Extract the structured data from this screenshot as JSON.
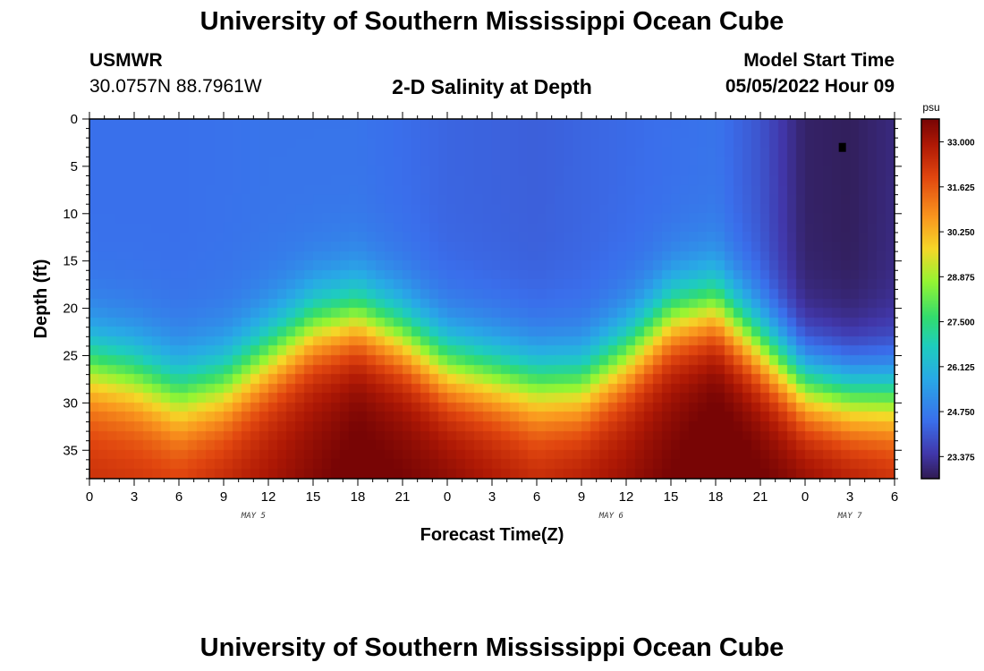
{
  "header": {
    "title": "University of Southern Mississippi Ocean Cube",
    "station_name": "USMWR",
    "station_coords": "30.0757N  88.7961W",
    "chart_title": "2-D Salinity at Depth",
    "model_label": "Model Start Time",
    "model_date": "05/05/2022 Hour 09"
  },
  "footer": {
    "title": "University of Southern Mississippi Ocean Cube"
  },
  "chart_data": {
    "type": "heatmap",
    "title": "2-D Salinity at Depth",
    "xlabel": "Forecast Time(Z)",
    "ylabel": "Depth (ft)",
    "x_ticks": [
      "0",
      "3",
      "6",
      "9",
      "12",
      "15",
      "18",
      "21",
      "0",
      "3",
      "6",
      "9",
      "12",
      "15",
      "18",
      "21",
      "0",
      "3",
      "6"
    ],
    "x_range_hours": [
      0,
      54
    ],
    "y_ticks": [
      "0",
      "5",
      "10",
      "15",
      "20",
      "25",
      "30",
      "35"
    ],
    "ylim": [
      0,
      38
    ],
    "date_labels": [
      {
        "label": "MAY 5",
        "hour": 11
      },
      {
        "label": "MAY 6",
        "hour": 35
      },
      {
        "label": "MAY 7",
        "hour": 51
      }
    ],
    "colorbar": {
      "unit": "psu",
      "range": [
        22.7,
        33.7
      ],
      "ticks": [
        "33.000",
        "31.625",
        "30.250",
        "28.875",
        "27.500",
        "26.125",
        "24.750",
        "23.375"
      ]
    },
    "marker": {
      "hour": 50.5,
      "depth": 3
    },
    "series": [
      {
        "name": "halocline_depth_ft",
        "hours": [
          0,
          3,
          6,
          9,
          12,
          15,
          18,
          21,
          24,
          27,
          30,
          33,
          36,
          39,
          42,
          45,
          48,
          51,
          54
        ],
        "values": [
          26,
          27,
          29,
          28,
          25,
          22,
          21,
          23,
          26,
          27,
          28,
          28,
          25,
          21,
          20,
          24,
          28,
          29,
          29
        ]
      },
      {
        "name": "bottom_salinity_psu",
        "hours": [
          0,
          6,
          12,
          18,
          24,
          30,
          36,
          42,
          48,
          54
        ],
        "values": [
          32.0,
          31.8,
          32.6,
          33.5,
          33.0,
          32.2,
          32.8,
          33.7,
          33.0,
          32.2
        ]
      },
      {
        "name": "surface_salinity_psu",
        "hours": [
          0,
          6,
          12,
          18,
          24,
          30,
          36,
          42,
          45,
          48,
          51,
          54
        ],
        "values": [
          24.5,
          24.5,
          24.6,
          24.6,
          24.3,
          24.2,
          24.4,
          24.6,
          24.0,
          22.9,
          22.8,
          23.1
        ]
      }
    ]
  }
}
